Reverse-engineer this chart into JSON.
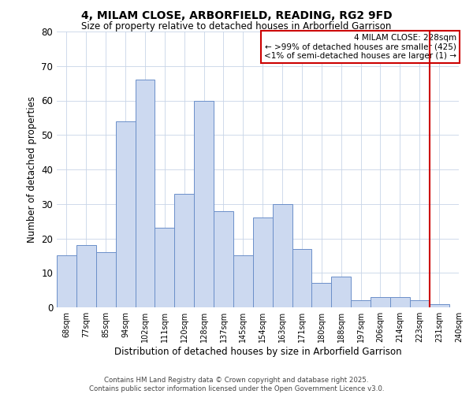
{
  "title": "4, MILAM CLOSE, ARBORFIELD, READING, RG2 9FD",
  "subtitle": "Size of property relative to detached houses in Arborfield Garrison",
  "xlabel": "Distribution of detached houses by size in Arborfield Garrison",
  "ylabel": "Number of detached properties",
  "bar_values": [
    15,
    18,
    16,
    54,
    66,
    23,
    33,
    60,
    28,
    15,
    26,
    30,
    17,
    7,
    9,
    2,
    3,
    3,
    2,
    1
  ],
  "bar_labels": [
    "68sqm",
    "77sqm",
    "85sqm",
    "94sqm",
    "102sqm",
    "111sqm",
    "120sqm",
    "128sqm",
    "137sqm",
    "145sqm",
    "154sqm",
    "163sqm",
    "171sqm",
    "180sqm",
    "188sqm",
    "197sqm",
    "206sqm",
    "214sqm",
    "223sqm",
    "231sqm",
    "240sqm"
  ],
  "ylim": [
    0,
    80
  ],
  "yticks": [
    0,
    10,
    20,
    30,
    40,
    50,
    60,
    70,
    80
  ],
  "bar_color_fill": "#ccd9f0",
  "bar_color_edge": "#6b8fc9",
  "vline_x": 18.5,
  "vline_color": "#cc0000",
  "legend_title": "4 MILAM CLOSE: 228sqm",
  "legend_line1": "← >99% of detached houses are smaller (425)",
  "legend_line2": "<1% of semi-detached houses are larger (1) →",
  "legend_box_color": "#cc0000",
  "footnote1": "Contains HM Land Registry data © Crown copyright and database right 2025.",
  "footnote2": "Contains public sector information licensed under the Open Government Licence v3.0.",
  "bg_color": "#ffffff",
  "grid_color": "#c8d4e8"
}
